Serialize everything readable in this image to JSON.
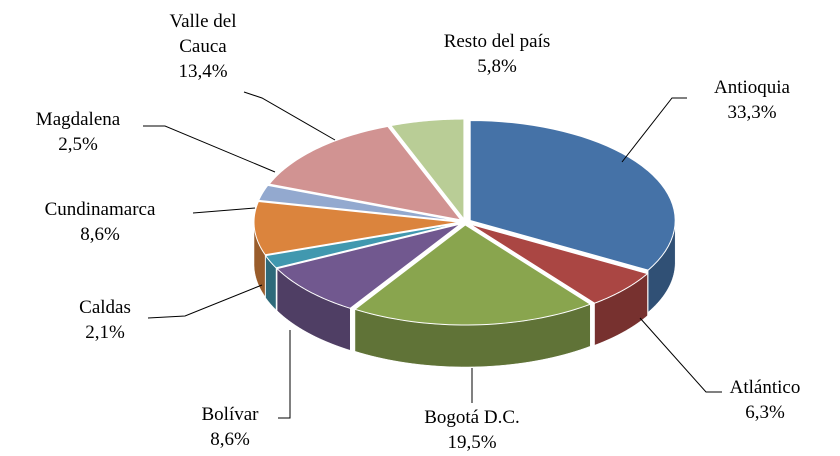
{
  "chart_data": {
    "type": "pie",
    "categories": [
      "Antioquia",
      "Atlántico",
      "Bogotá D.C.",
      "Bolívar",
      "Caldas",
      "Cundinamarca",
      "Magdalena",
      "Valle del Cauca",
      "Resto del país"
    ],
    "values": [
      33.3,
      6.3,
      19.5,
      8.6,
      2.1,
      8.6,
      2.5,
      13.4,
      5.8
    ],
    "value_labels": [
      "33,3%",
      "6,3%",
      "19,5%",
      "8,6%",
      "2,1%",
      "8,6%",
      "2,5%",
      "13,4%",
      "5,8%"
    ],
    "colors": [
      "#4572a7",
      "#aa4643",
      "#89a54e",
      "#71588f",
      "#4198af",
      "#db843d",
      "#93a9cf",
      "#d19392",
      "#b9cd96"
    ]
  }
}
